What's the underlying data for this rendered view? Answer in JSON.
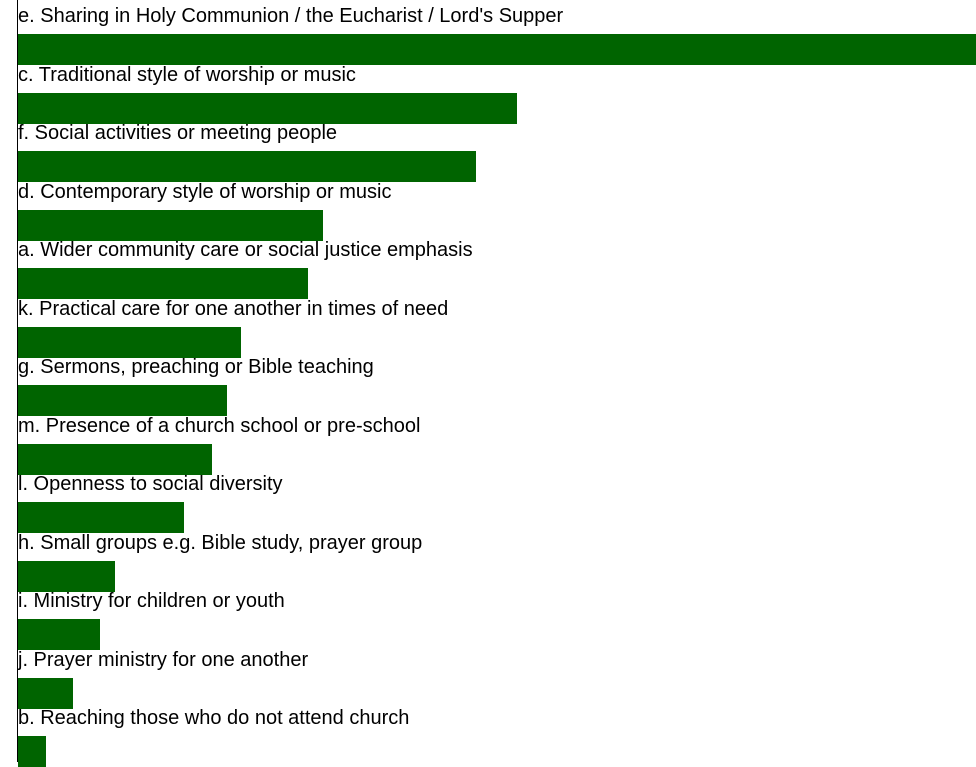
{
  "chart_data": {
    "type": "bar",
    "orientation": "horizontal",
    "bar_color": "#006400",
    "categories": [
      "e. Sharing in Holy Communion / the Eucharist / Lord's Supper",
      "c. Traditional style of worship or music",
      "f. Social activities or meeting people",
      "d. Contemporary style of worship or music",
      "a. Wider community care or social justice emphasis",
      "k. Practical care for one another in times of need",
      "g. Sermons, preaching or Bible teaching",
      "m. Presence of a church school or pre-school",
      "l. Openness to social diversity",
      "h. Small groups e.g. Bible study, prayer group",
      "i. Ministry for children or youth",
      "j. Prayer ministry for one another",
      "b. Reaching those who do not attend church"
    ],
    "values": [
      100,
      52.1,
      47.8,
      31.8,
      30.3,
      23.3,
      21.8,
      20.3,
      17.3,
      10.1,
      8.6,
      5.7,
      2.9
    ],
    "xlim": [
      0,
      100
    ],
    "grid": false,
    "legend": "none"
  }
}
